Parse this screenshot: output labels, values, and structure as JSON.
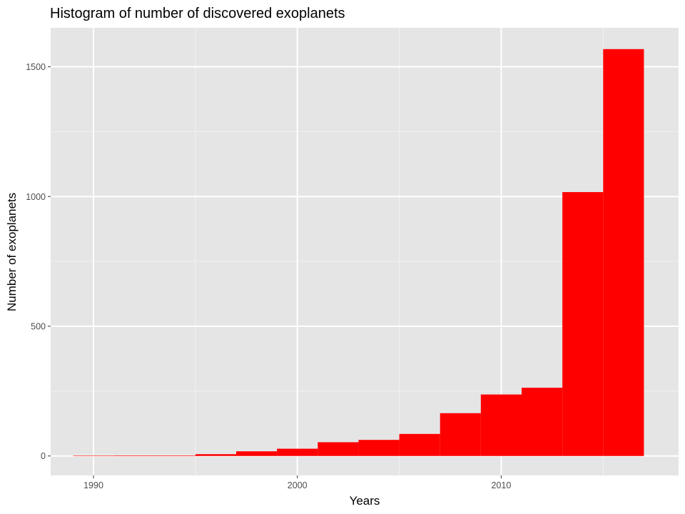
{
  "chart_data": {
    "type": "bar",
    "title": "Histogram of number of discovered exoplanets",
    "xlabel": "Years",
    "ylabel": "Number of exoplanets",
    "xlim": [
      1987.9,
      2018.7
    ],
    "ylim": [
      -75,
      1650
    ],
    "x_ticks": [
      1990,
      2000,
      2010
    ],
    "y_ticks": [
      0,
      500,
      1000,
      1500
    ],
    "bin_width": 2,
    "bins": [
      {
        "start": 1989,
        "end": 1991,
        "count": 1
      },
      {
        "start": 1991,
        "end": 1993,
        "count": 2
      },
      {
        "start": 1993,
        "end": 1995,
        "count": 2
      },
      {
        "start": 1995,
        "end": 1997,
        "count": 7
      },
      {
        "start": 1997,
        "end": 1999,
        "count": 18
      },
      {
        "start": 1999,
        "end": 2001,
        "count": 28
      },
      {
        "start": 2001,
        "end": 2003,
        "count": 53
      },
      {
        "start": 2003,
        "end": 2005,
        "count": 62
      },
      {
        "start": 2005,
        "end": 2007,
        "count": 85
      },
      {
        "start": 2007,
        "end": 2009,
        "count": 165
      },
      {
        "start": 2009,
        "end": 2011,
        "count": 237
      },
      {
        "start": 2011,
        "end": 2013,
        "count": 263
      },
      {
        "start": 2013,
        "end": 2015,
        "count": 1017
      },
      {
        "start": 2015,
        "end": 2017,
        "count": 1568
      }
    ],
    "grid": true,
    "legend": "none",
    "colors": {
      "bar": "#ff0000",
      "panel": "#e5e5e5",
      "grid_major": "#ffffff",
      "grid_minor": "#f2f2f2",
      "tick": "#333333"
    }
  }
}
